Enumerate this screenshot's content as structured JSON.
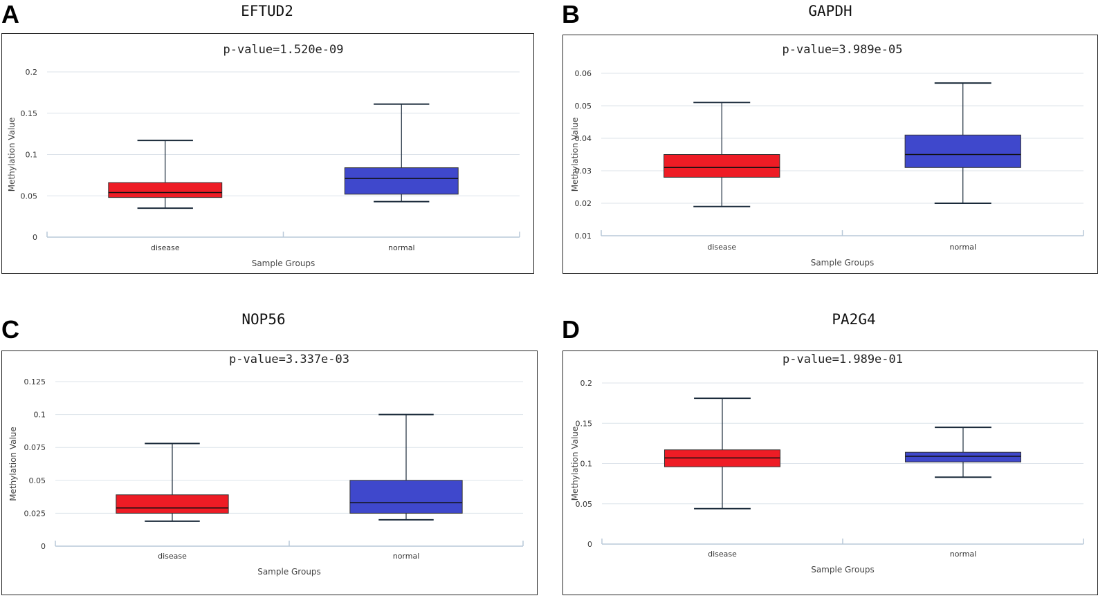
{
  "colors": {
    "disease": "#ee1c25",
    "normal": "#3f48cc",
    "grid": "#dce3ea",
    "whisker": "#1a2a3a"
  },
  "chart_data": [
    {
      "type": "boxplot",
      "panel": "A",
      "title": "EFTUD2",
      "pvalue_label": "p-value=1.520e-09",
      "xlabel": "Sample Groups",
      "ylabel": "Methylation Value",
      "yticks": [
        "0",
        "0.05",
        "0.1",
        "0.15",
        "0.2"
      ],
      "ylim": [
        0,
        0.2
      ],
      "categories": [
        "disease",
        "normal"
      ],
      "boxes": [
        {
          "name": "disease",
          "min": 0.035,
          "q1": 0.048,
          "median": 0.054,
          "q3": 0.066,
          "max": 0.117
        },
        {
          "name": "normal",
          "min": 0.043,
          "q1": 0.052,
          "median": 0.071,
          "q3": 0.084,
          "max": 0.161
        }
      ]
    },
    {
      "type": "boxplot",
      "panel": "B",
      "title": "GAPDH",
      "pvalue_label": "p-value=3.989e-05",
      "xlabel": "Sample Groups",
      "ylabel": "Methylation Value",
      "yticks": [
        "0.01",
        "0.02",
        "0.03",
        "0.04",
        "0.05",
        "0.06"
      ],
      "ylim": [
        0.01,
        0.06
      ],
      "categories": [
        "disease",
        "normal"
      ],
      "boxes": [
        {
          "name": "disease",
          "min": 0.019,
          "q1": 0.028,
          "median": 0.031,
          "q3": 0.035,
          "max": 0.051
        },
        {
          "name": "normal",
          "min": 0.02,
          "q1": 0.031,
          "median": 0.035,
          "q3": 0.041,
          "max": 0.057
        }
      ]
    },
    {
      "type": "boxplot",
      "panel": "C",
      "title": "NOP56",
      "pvalue_label": "p-value=3.337e-03",
      "xlabel": "Sample Groups",
      "ylabel": "Methylation Value",
      "yticks": [
        "0",
        "0.025",
        "0.05",
        "0.075",
        "0.1",
        "0.125"
      ],
      "ylim": [
        0,
        0.125
      ],
      "categories": [
        "disease",
        "normal"
      ],
      "boxes": [
        {
          "name": "disease",
          "min": 0.019,
          "q1": 0.025,
          "median": 0.029,
          "q3": 0.039,
          "max": 0.078
        },
        {
          "name": "normal",
          "min": 0.02,
          "q1": 0.025,
          "median": 0.033,
          "q3": 0.05,
          "max": 0.1
        }
      ]
    },
    {
      "type": "boxplot",
      "panel": "D",
      "title": "PA2G4",
      "pvalue_label": "p-value=1.989e-01",
      "xlabel": "Sample Groups",
      "ylabel": "Methylation Value",
      "yticks": [
        "0",
        "0.05",
        "0.1",
        "0.15",
        "0.2"
      ],
      "ylim": [
        0,
        0.2
      ],
      "categories": [
        "disease",
        "normal"
      ],
      "boxes": [
        {
          "name": "disease",
          "min": 0.044,
          "q1": 0.096,
          "median": 0.107,
          "q3": 0.117,
          "max": 0.181
        },
        {
          "name": "normal",
          "min": 0.083,
          "q1": 0.102,
          "median": 0.109,
          "q3": 0.114,
          "max": 0.145
        }
      ]
    }
  ]
}
